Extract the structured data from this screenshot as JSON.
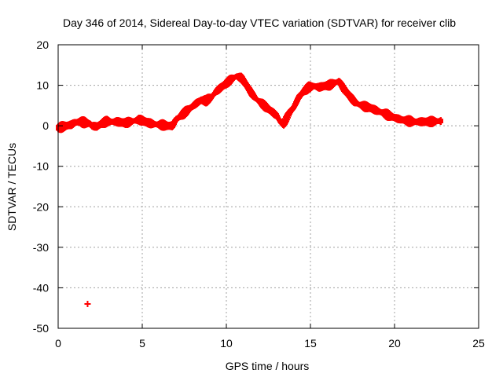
{
  "chart_data": {
    "type": "scatter",
    "title": "Day 346 of 2014, Sidereal Day-to-day VTEC variation (SDTVAR) for receiver clib",
    "xlabel": "GPS time / hours",
    "ylabel": "SDTVAR / TECUs",
    "xlim": [
      0,
      25
    ],
    "ylim": [
      -50,
      20
    ],
    "xticks": [
      0,
      5,
      10,
      15,
      20,
      25
    ],
    "yticks": [
      -50,
      -40,
      -30,
      -20,
      -10,
      0,
      10,
      20
    ],
    "grid": true,
    "legend": "none",
    "color": "#ff0000",
    "marker": "plus",
    "series": [
      {
        "name": "SDTVAR",
        "x": [
          0.0,
          0.5,
          0.8,
          1.0,
          1.3,
          1.6,
          1.9,
          2.0,
          2.3,
          2.6,
          2.9,
          3.2,
          3.5,
          3.8,
          4.0,
          4.3,
          4.5,
          4.8,
          5.0,
          5.3,
          5.6,
          5.9,
          6.2,
          6.5,
          6.8,
          7.0,
          7.3,
          7.6,
          7.9,
          8.2,
          8.5,
          8.8,
          9.1,
          9.4,
          9.7,
          10.0,
          10.3,
          10.6,
          10.9,
          11.2,
          11.5,
          11.8,
          12.1,
          12.4,
          12.7,
          13.0,
          13.2,
          13.4,
          13.6,
          13.8,
          14.0,
          14.3,
          14.6,
          14.9,
          15.2,
          15.5,
          15.8,
          16.1,
          16.4,
          16.7,
          17.0,
          17.3,
          17.6,
          17.9,
          18.2,
          18.5,
          18.8,
          19.1,
          19.4,
          19.7,
          20.0,
          20.4,
          20.8,
          21.2,
          21.6,
          22.0,
          22.4,
          22.8
        ],
        "y": [
          -0.5,
          0.0,
          0.3,
          0.8,
          1.0,
          0.8,
          0.5,
          0.0,
          -0.2,
          0.6,
          1.1,
          1.0,
          1.0,
          0.8,
          0.7,
          1.0,
          1.2,
          1.5,
          1.3,
          0.8,
          0.5,
          0.3,
          0.2,
          0.0,
          0.0,
          1.5,
          2.5,
          3.5,
          4.5,
          5.5,
          6.3,
          6.2,
          7.0,
          8.5,
          9.5,
          10.5,
          11.5,
          12.2,
          11.8,
          10.0,
          8.0,
          6.5,
          5.5,
          4.5,
          3.5,
          2.5,
          1.0,
          0.5,
          2.0,
          3.5,
          4.5,
          7.0,
          8.5,
          9.5,
          9.8,
          9.5,
          9.8,
          10.0,
          10.5,
          11.0,
          9.0,
          7.5,
          6.0,
          5.2,
          4.8,
          4.5,
          4.0,
          3.5,
          3.0,
          2.5,
          2.0,
          1.5,
          1.2,
          1.0,
          1.0,
          1.0,
          1.1,
          1.2
        ],
        "band": 0.9
      },
      {
        "name": "outlier",
        "x": [
          1.75
        ],
        "y": [
          -44
        ]
      }
    ]
  }
}
